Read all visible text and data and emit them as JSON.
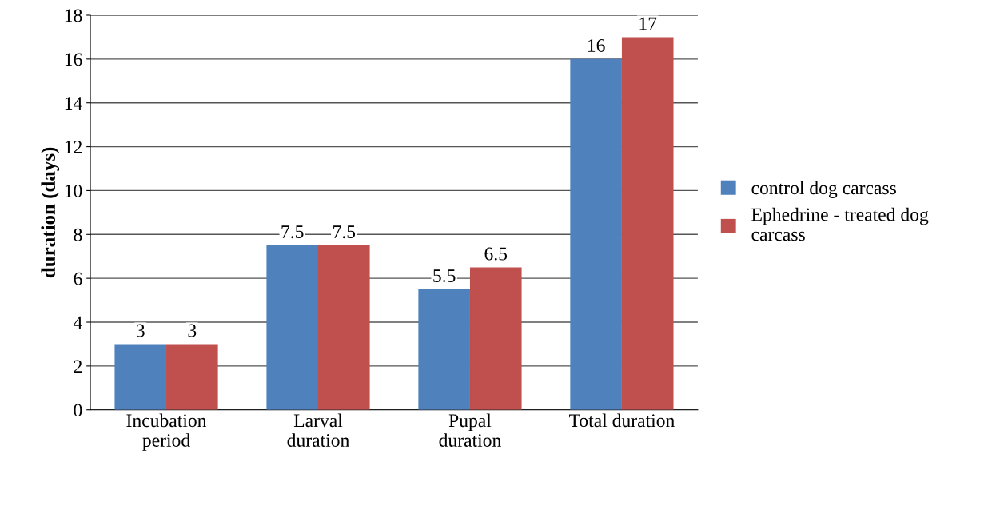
{
  "chart_data": {
    "type": "bar",
    "ylabel": "duration (days)",
    "categories": [
      "Incubation\nperiod",
      "Larval\nduration",
      "Pupal\nduration",
      "Total duration"
    ],
    "series": [
      {
        "name": "control dog carcass",
        "color": "#4f81bd",
        "values": [
          3,
          7.5,
          5.5,
          16
        ]
      },
      {
        "name": "Ephedrine - treated dog\ncarcass",
        "color": "#c0504d",
        "values": [
          3,
          7.5,
          6.5,
          17
        ]
      }
    ],
    "ylim": [
      0,
      18
    ],
    "yticks": [
      0,
      2,
      4,
      6,
      8,
      10,
      12,
      14,
      16,
      18
    ],
    "grid": "y",
    "legend": "right",
    "data_labels": true
  }
}
